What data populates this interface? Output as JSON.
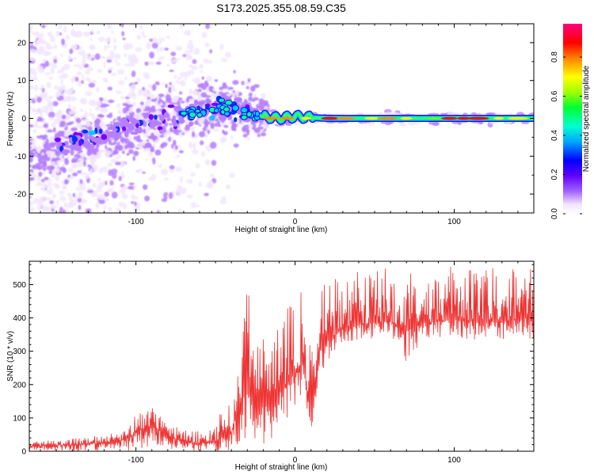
{
  "title": "S173.2025.355.08.59.C35",
  "chart_data": [
    {
      "type": "heatmap",
      "xlabel": "Height of straight line (km)",
      "ylabel": "Frequency (Hz)",
      "xlim": [
        -167,
        150
      ],
      "ylim": [
        -25,
        25
      ],
      "xticks": [
        -100,
        0,
        100
      ],
      "yticks": [
        -20,
        -10,
        0,
        10,
        20
      ],
      "colorbar": {
        "label": "Normalized spectral amplitude",
        "ticks": [
          0.0,
          0.2,
          0.4,
          0.6,
          0.8
        ],
        "range": [
          0,
          0.97
        ],
        "colors": [
          "#ffffff",
          "#f2e6ff",
          "#b580ff",
          "#7a00ff",
          "#0030ff",
          "#00c8ff",
          "#00ff80",
          "#66ff00",
          "#ffff00",
          "#ff9000",
          "#ff0000",
          "#ff0080"
        ]
      },
      "ridge": {
        "description_points_x": [
          -160,
          -140,
          -120,
          -100,
          -80,
          -60,
          -40,
          -30,
          -20,
          -10,
          0,
          10,
          20,
          50,
          80,
          100,
          150
        ],
        "description_points_y": [
          -10,
          -7,
          -4,
          -2,
          0,
          2,
          3,
          1,
          0.5,
          0,
          0.5,
          0.2,
          0,
          0,
          0,
          0,
          0
        ]
      }
    },
    {
      "type": "line",
      "xlabel": "Height of straight line (km)",
      "ylabel": "SNR (10 * v/v)",
      "xlim": [
        -167,
        150
      ],
      "ylim": [
        0,
        570
      ],
      "xticks": [
        -100,
        0,
        100
      ],
      "yticks": [
        0,
        100,
        200,
        300,
        400,
        500
      ],
      "series": [
        {
          "name": "SNR",
          "color": "#ee3333",
          "x": [
            -167,
            -150,
            -130,
            -110,
            -100,
            -90,
            -80,
            -70,
            -60,
            -50,
            -40,
            -35,
            -30,
            -25,
            -20,
            -15,
            -10,
            -5,
            0,
            5,
            10,
            15,
            20,
            25,
            30,
            40,
            50,
            60,
            70,
            80,
            90,
            100,
            110,
            120,
            130,
            140,
            150
          ],
          "y": [
            15,
            18,
            22,
            30,
            55,
            80,
            45,
            30,
            22,
            30,
            60,
            130,
            200,
            180,
            160,
            120,
            170,
            210,
            240,
            270,
            80,
            300,
            330,
            350,
            365,
            380,
            385,
            390,
            360,
            385,
            390,
            395,
            390,
            388,
            392,
            395,
            400
          ],
          "spikes_max": [
            28,
            35,
            42,
            60,
            110,
            135,
            85,
            70,
            60,
            80,
            200,
            330,
            490,
            430,
            400,
            320,
            380,
            440,
            470,
            520,
            330,
            500,
            530,
            540,
            545,
            550,
            550,
            560,
            545,
            550,
            550,
            555,
            550,
            550,
            550,
            545,
            550
          ],
          "spikes_min": [
            0,
            0,
            0,
            0,
            0,
            0,
            0,
            0,
            0,
            0,
            0,
            20,
            40,
            30,
            10,
            0,
            40,
            100,
            130,
            160,
            45,
            200,
            250,
            300,
            320,
            330,
            340,
            345,
            260,
            335,
            340,
            340,
            335,
            330,
            330,
            335,
            335
          ]
        }
      ]
    }
  ]
}
